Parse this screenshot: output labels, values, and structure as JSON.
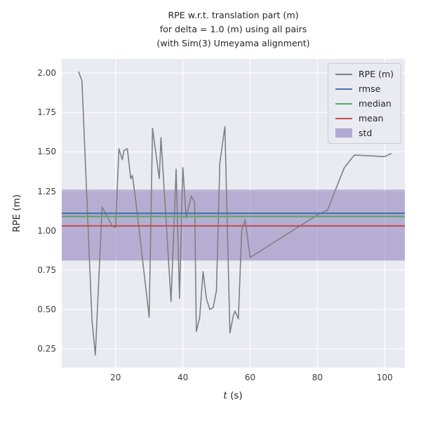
{
  "title_lines": [
    "RPE w.r.t. translation part (m)",
    "for delta = 1.0 (m) using all pairs",
    "(with Sim(3) Umeyama alignment)"
  ],
  "colors": {
    "plot_bg": "#eaeaf2",
    "grid": "#ffffff",
    "rpe_line": "#808080",
    "rmse": "#4c72b0",
    "median": "#55a868",
    "mean": "#c44e52",
    "std": "#8172b2",
    "text": "#262626"
  },
  "xlabel_parts": {
    "italic": "t",
    "rest": " (s)"
  },
  "chart_data": {
    "type": "line",
    "title": "RPE w.r.t. translation part (m) for delta = 1.0 (m) using all pairs (with Sim(3) Umeyama alignment)",
    "xlabel": "t (s)",
    "ylabel": "RPE (m)",
    "xlim": [
      4,
      106
    ],
    "ylim": [
      0.13,
      2.09
    ],
    "xticks": [
      20,
      40,
      60,
      80,
      100
    ],
    "xticklabels": [
      "20",
      "40",
      "60",
      "80",
      "100"
    ],
    "yticks": [
      0.25,
      0.5,
      0.75,
      1.0,
      1.25,
      1.5,
      1.75,
      2.0
    ],
    "yticklabels": [
      "0.25",
      "0.50",
      "0.75",
      "1.00",
      "1.25",
      "1.50",
      "1.75",
      "2.00"
    ],
    "grid": true,
    "legend_position": "upper right",
    "series": [
      {
        "name": "RPE (m)",
        "kind": "line",
        "color_key": "rpe_line",
        "x": [
          9,
          10,
          13,
          14,
          16,
          19,
          20,
          21,
          22,
          22.5,
          23.5,
          24.5,
          25,
          26,
          30,
          31,
          33,
          33.5,
          36.5,
          38,
          39,
          40,
          41,
          42.5,
          43.5,
          44,
          45,
          46,
          47,
          48,
          49,
          50,
          51,
          52.5,
          54,
          55,
          55.5,
          56.5,
          57.5,
          58.5,
          60,
          80,
          83,
          88,
          91,
          100,
          102
        ],
        "y": [
          2.01,
          1.95,
          0.43,
          0.21,
          1.15,
          1.03,
          1.02,
          1.52,
          1.45,
          1.51,
          1.52,
          1.33,
          1.35,
          1.19,
          0.45,
          1.65,
          1.33,
          1.59,
          0.55,
          1.39,
          0.57,
          1.4,
          1.08,
          1.22,
          1.18,
          0.36,
          0.45,
          0.74,
          0.57,
          0.5,
          0.51,
          0.62,
          1.43,
          1.66,
          0.35,
          0.46,
          0.49,
          0.44,
          1.0,
          1.07,
          0.83,
          1.1,
          1.13,
          1.4,
          1.48,
          1.47,
          1.49
        ]
      },
      {
        "name": "rmse",
        "kind": "hline",
        "color_key": "rmse",
        "value": 1.11
      },
      {
        "name": "median",
        "kind": "hline",
        "color_key": "median",
        "value": 1.09
      },
      {
        "name": "mean",
        "kind": "hline",
        "color_key": "mean",
        "value": 1.03
      },
      {
        "name": "std",
        "kind": "band",
        "color_key": "std",
        "alpha": 0.5,
        "range": [
          0.81,
          1.26
        ]
      }
    ],
    "legend_entries": [
      {
        "label": "RPE (m)",
        "swatch": "line",
        "color_key": "rpe_line"
      },
      {
        "label": "rmse",
        "swatch": "line",
        "color_key": "rmse"
      },
      {
        "label": "median",
        "swatch": "line",
        "color_key": "median"
      },
      {
        "label": "mean",
        "swatch": "line",
        "color_key": "mean"
      },
      {
        "label": "std",
        "swatch": "patch",
        "color_key": "std"
      }
    ]
  }
}
